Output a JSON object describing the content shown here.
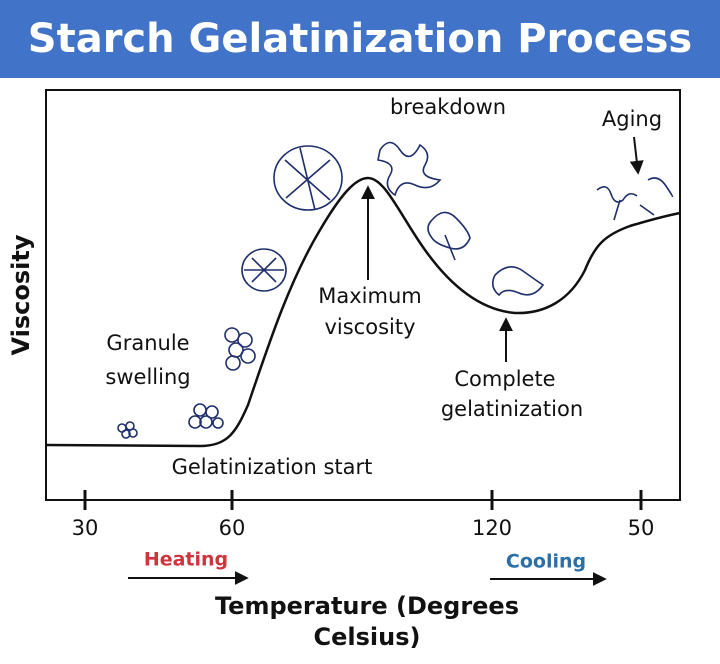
{
  "header": {
    "title": "Starch Gelatinization Process"
  },
  "y_axis_label": "Viscosity",
  "x_axis_label": [
    "Temperature (Degrees",
    "Celsius)"
  ],
  "x_ticks": [
    "30",
    "60",
    "120",
    "50"
  ],
  "phases": {
    "heating": "Heating",
    "cooling": "Cooling"
  },
  "annotations": {
    "breakdown": "breakdown",
    "aging": "Aging",
    "maximum": [
      "Maximum",
      "viscosity"
    ],
    "swelling": [
      "Granule",
      "swelling"
    ],
    "complete": [
      "Complete",
      "gelatinization"
    ],
    "start": "Gelatinization start"
  }
}
